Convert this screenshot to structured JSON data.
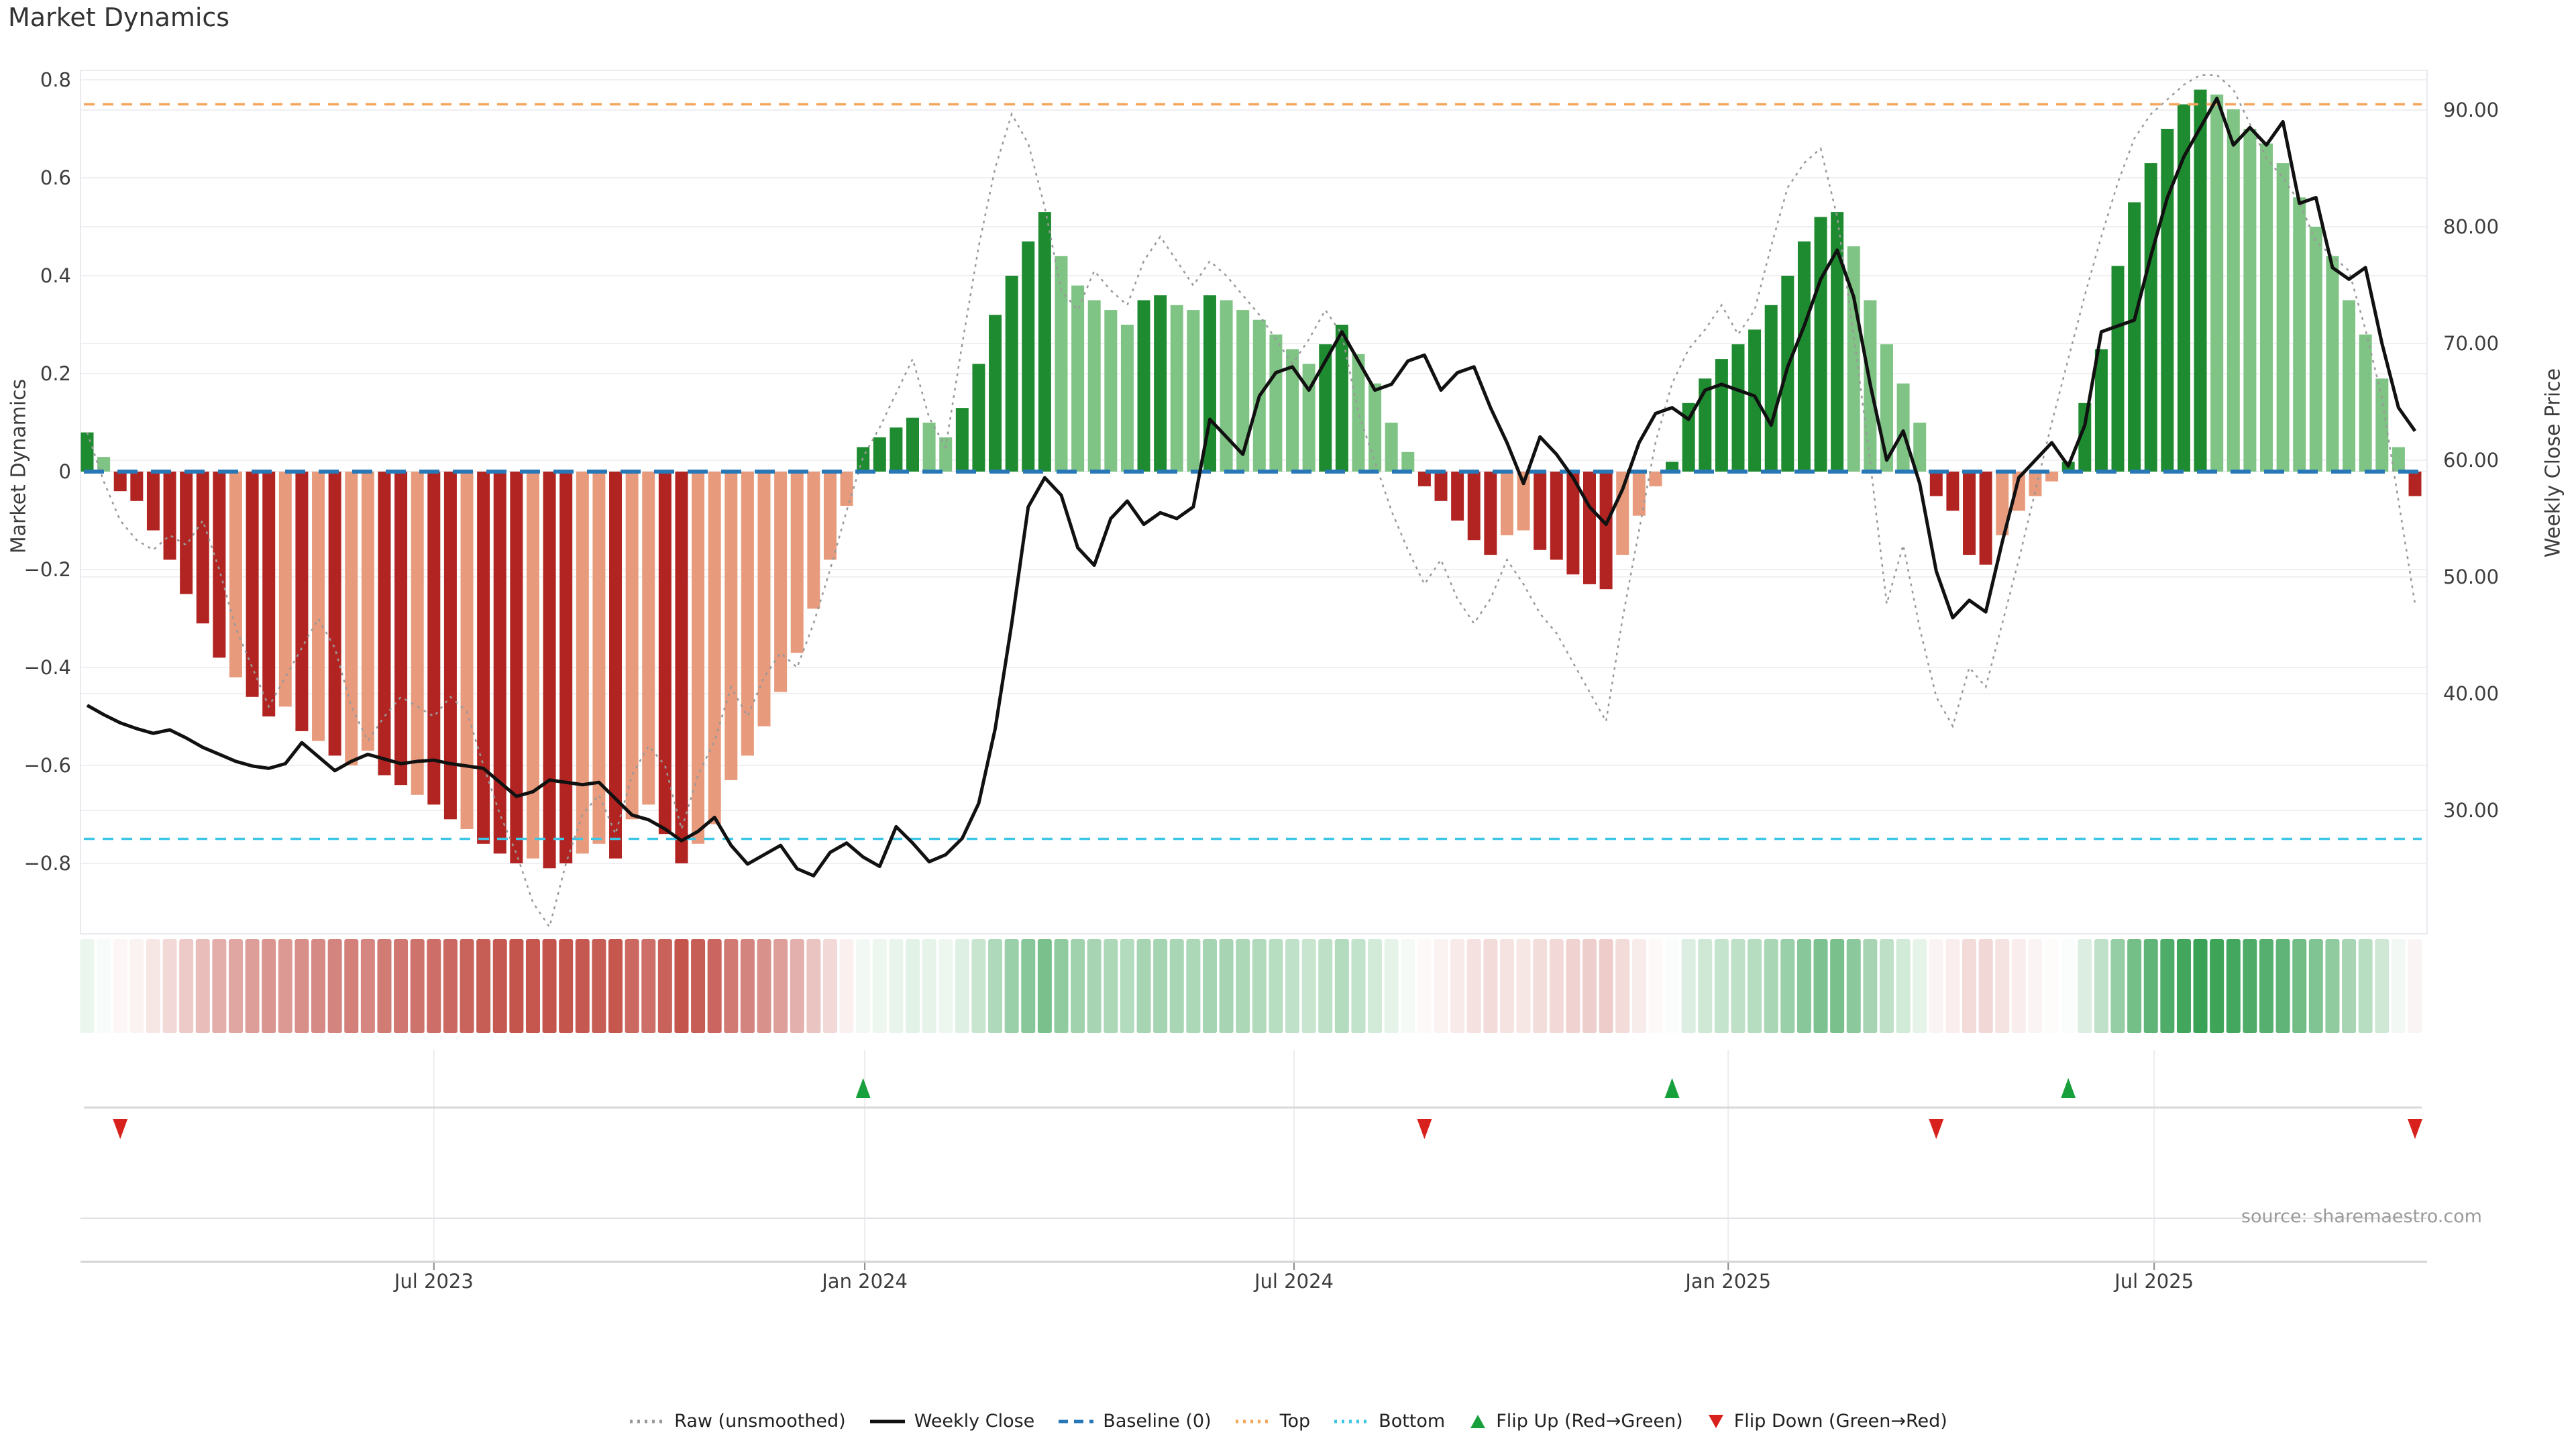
{
  "title": "Market Dynamics",
  "source": "source: sharemaestro.com",
  "axes": {
    "left": {
      "label": "Market Dynamics",
      "tick_values": [
        0.8,
        0.6,
        0.4,
        0.2,
        0,
        -0.2,
        -0.4,
        -0.6,
        -0.8
      ],
      "tick_labels": [
        "0.8",
        "0.6",
        "0.4",
        "0.2",
        "0",
        "−0.2",
        "−0.4",
        "−0.6",
        "−0.8"
      ]
    },
    "right": {
      "label": "Weekly Close Price",
      "tick_values": [
        90,
        80,
        70,
        60,
        50,
        40,
        30
      ],
      "tick_labels": [
        "90.00",
        "80.00",
        "70.00",
        "60.00",
        "50.00",
        "40.00",
        "30.00"
      ]
    },
    "x": {
      "ticks": [
        {
          "label": "Jul 2023",
          "week": 21.0
        },
        {
          "label": "Jan 2024",
          "week": 47.1
        },
        {
          "label": "Jul 2024",
          "week": 73.1
        },
        {
          "label": "Jan 2025",
          "week": 99.4
        },
        {
          "label": "Jul 2025",
          "week": 125.2
        }
      ]
    }
  },
  "legend": [
    {
      "label": "Raw (unsmoothed)",
      "type": "dotted",
      "color": "#999999"
    },
    {
      "label": "Weekly Close",
      "type": "solid",
      "color": "#111111"
    },
    {
      "label": "Baseline (0)",
      "type": "dashed",
      "color": "#2878b8"
    },
    {
      "label": "Top",
      "type": "dotted",
      "color": "#f3a55a"
    },
    {
      "label": "Bottom",
      "type": "dotted",
      "color": "#3ec6e6"
    },
    {
      "label": "Flip Up (Red→Green)",
      "type": "triangle-up",
      "color": "#17a03c"
    },
    {
      "label": "Flip Down (Green→Red)",
      "type": "triangle-down",
      "color": "#d8211d"
    }
  ],
  "colors": {
    "bar_dark_green": "#1f8b30",
    "bar_light_green": "#7fc485",
    "bar_dark_red": "#b22421",
    "bar_light_red": "#e89b7c",
    "baseline": "#2878b8",
    "top_line": "#f3a55a",
    "bottom_line": "#3ec6e6",
    "raw_line": "#999999",
    "close_line": "#111111",
    "flip_up": "#17a03c",
    "flip_down": "#d8211d",
    "heat_pos": "#35a052",
    "heat_neg": "#c4554d",
    "grid": "#f0f0f4",
    "panel_line": "#d8d8d8",
    "tick_text": "#3d3d3d"
  },
  "chart_data": {
    "type": "bar+line combo with heatmap strip and flip markers",
    "x_start": "2023-02-06",
    "x_freq": "weekly",
    "n_weeks": 142,
    "left_ylim": [
      -0.8,
      0.8
    ],
    "right_ylim_ticks": [
      30,
      90
    ],
    "baseline": 0,
    "top_threshold": 0.75,
    "bottom_threshold": -0.75,
    "grid": "horizontal only (main), vertical monthly (marker panel)",
    "legend_position": "bottom center",
    "series": {
      "dynamics_bars": {
        "name": "Market Dynamics (smoothed weekly)",
        "values": [
          0.08,
          0.03,
          -0.04,
          -0.06,
          -0.12,
          -0.18,
          -0.25,
          -0.31,
          -0.38,
          -0.42,
          -0.46,
          -0.5,
          -0.48,
          -0.53,
          -0.55,
          -0.58,
          -0.6,
          -0.57,
          -0.62,
          -0.64,
          -0.66,
          -0.68,
          -0.71,
          -0.73,
          -0.76,
          -0.78,
          -0.8,
          -0.79,
          -0.81,
          -0.8,
          -0.78,
          -0.76,
          -0.79,
          -0.71,
          -0.68,
          -0.74,
          -0.8,
          -0.76,
          -0.72,
          -0.63,
          -0.58,
          -0.52,
          -0.45,
          -0.37,
          -0.28,
          -0.18,
          -0.07,
          0.05,
          0.07,
          0.09,
          0.11,
          0.1,
          0.07,
          0.13,
          0.22,
          0.32,
          0.4,
          0.47,
          0.53,
          0.44,
          0.38,
          0.35,
          0.33,
          0.3,
          0.35,
          0.36,
          0.34,
          0.33,
          0.36,
          0.35,
          0.33,
          0.31,
          0.28,
          0.25,
          0.22,
          0.26,
          0.3,
          0.24,
          0.18,
          0.1,
          0.04,
          -0.03,
          -0.06,
          -0.1,
          -0.14,
          -0.17,
          -0.13,
          -0.12,
          -0.16,
          -0.18,
          -0.21,
          -0.23,
          -0.24,
          -0.17,
          -0.09,
          -0.03,
          0.02,
          0.14,
          0.19,
          0.23,
          0.26,
          0.29,
          0.34,
          0.4,
          0.47,
          0.52,
          0.53,
          0.46,
          0.35,
          0.26,
          0.18,
          0.1,
          -0.05,
          -0.08,
          -0.17,
          -0.19,
          -0.13,
          -0.08,
          -0.05,
          -0.02,
          0.02,
          0.14,
          0.25,
          0.42,
          0.55,
          0.63,
          0.7,
          0.75,
          0.78,
          0.77,
          0.74,
          0.7,
          0.67,
          0.63,
          0.56,
          0.5,
          0.44,
          0.35,
          0.28,
          0.19,
          0.05,
          -0.05
        ],
        "shades": "DLDDDDDDDLDDLDLDLLDDLDDLDDDLDDLLDLLDDLLLLLLLLLLDDDDLLDDDDDDLLLLLDDLLDLLLLLLDDLLLLDDDDDLLDDDDDLLLDDDDDDDDDDDLLLLLDDDDLLLLDDDDDDDDDLLLLLLLLLLLLD",
        "shade_meaning": "D = strong (dark bar), L = fading (light bar)"
      },
      "raw": {
        "name": "Raw (unsmoothed)",
        "values": [
          0.08,
          -0.02,
          -0.1,
          -0.14,
          -0.16,
          -0.13,
          -0.15,
          -0.1,
          -0.2,
          -0.32,
          -0.4,
          -0.48,
          -0.42,
          -0.36,
          -0.3,
          -0.36,
          -0.48,
          -0.55,
          -0.5,
          -0.46,
          -0.48,
          -0.5,
          -0.46,
          -0.49,
          -0.6,
          -0.7,
          -0.78,
          -0.88,
          -0.93,
          -0.8,
          -0.7,
          -0.66,
          -0.74,
          -0.62,
          -0.56,
          -0.6,
          -0.73,
          -0.62,
          -0.55,
          -0.44,
          -0.5,
          -0.42,
          -0.37,
          -0.4,
          -0.31,
          -0.2,
          -0.08,
          0.03,
          0.09,
          0.16,
          0.23,
          0.11,
          0.05,
          0.26,
          0.46,
          0.62,
          0.73,
          0.67,
          0.54,
          0.37,
          0.33,
          0.41,
          0.37,
          0.34,
          0.43,
          0.48,
          0.43,
          0.38,
          0.43,
          0.4,
          0.36,
          0.32,
          0.27,
          0.22,
          0.27,
          0.33,
          0.28,
          0.12,
          0.02,
          -0.08,
          -0.16,
          -0.23,
          -0.18,
          -0.26,
          -0.31,
          -0.26,
          -0.18,
          -0.23,
          -0.29,
          -0.33,
          -0.39,
          -0.45,
          -0.51,
          -0.3,
          -0.12,
          0.06,
          0.18,
          0.25,
          0.29,
          0.34,
          0.28,
          0.33,
          0.46,
          0.58,
          0.63,
          0.66,
          0.52,
          0.28,
          0.02,
          -0.27,
          -0.15,
          -0.32,
          -0.46,
          -0.52,
          -0.4,
          -0.44,
          -0.31,
          -0.18,
          -0.04,
          0.1,
          0.23,
          0.36,
          0.48,
          0.59,
          0.68,
          0.73,
          0.76,
          0.79,
          0.81,
          0.81,
          0.78,
          0.71,
          0.64,
          0.6,
          0.55,
          0.47,
          0.44,
          0.41,
          0.29,
          0.15,
          -0.06,
          -0.27
        ]
      },
      "weekly_close": {
        "name": "Weekly Close",
        "values": [
          39,
          38.2,
          37.5,
          37,
          36.6,
          36.9,
          36.2,
          35.4,
          34.8,
          34.2,
          33.8,
          33.6,
          34,
          35.8,
          34.6,
          33.4,
          34.2,
          34.8,
          34.4,
          34,
          34.2,
          34.3,
          34,
          33.8,
          33.6,
          32.4,
          31.2,
          31.6,
          32.6,
          32.4,
          32.2,
          32.4,
          31,
          29.6,
          29.2,
          28.4,
          27.4,
          28.2,
          29.4,
          27,
          25.4,
          26.2,
          27,
          25,
          24.4,
          26.4,
          27.2,
          26,
          25.2,
          28.6,
          27.2,
          25.6,
          26.2,
          27.6,
          30.6,
          37,
          46,
          56,
          58.5,
          57,
          52.5,
          51,
          55,
          56.5,
          54.5,
          55.5,
          55,
          56,
          63.5,
          62,
          60.5,
          65.5,
          67.5,
          68,
          66,
          68.5,
          71,
          68.5,
          66,
          66.5,
          68.5,
          69,
          66,
          67.5,
          68,
          64.5,
          61.5,
          58,
          62,
          60.5,
          58.5,
          56,
          54.5,
          57.5,
          61.5,
          64,
          64.5,
          63.5,
          66,
          66.5,
          66,
          65.5,
          63,
          68,
          71.5,
          75.5,
          78,
          74,
          66.5,
          60,
          62.5,
          58,
          50.5,
          46.5,
          48,
          47,
          53,
          58.5,
          60,
          61.5,
          59.5,
          63,
          71,
          71.5,
          72,
          77.5,
          82.5,
          86,
          88.5,
          91,
          87,
          88.5,
          87,
          89,
          82,
          82.5,
          76.5,
          75.5,
          76.5,
          70,
          64.5,
          62.5
        ]
      }
    },
    "heatmap_strip": "same weekly dynamics values rendered as red/green intensity cells",
    "flip_up_weeks": [
      47,
      96,
      120
    ],
    "flip_down_weeks": [
      2,
      81,
      112,
      141
    ]
  }
}
